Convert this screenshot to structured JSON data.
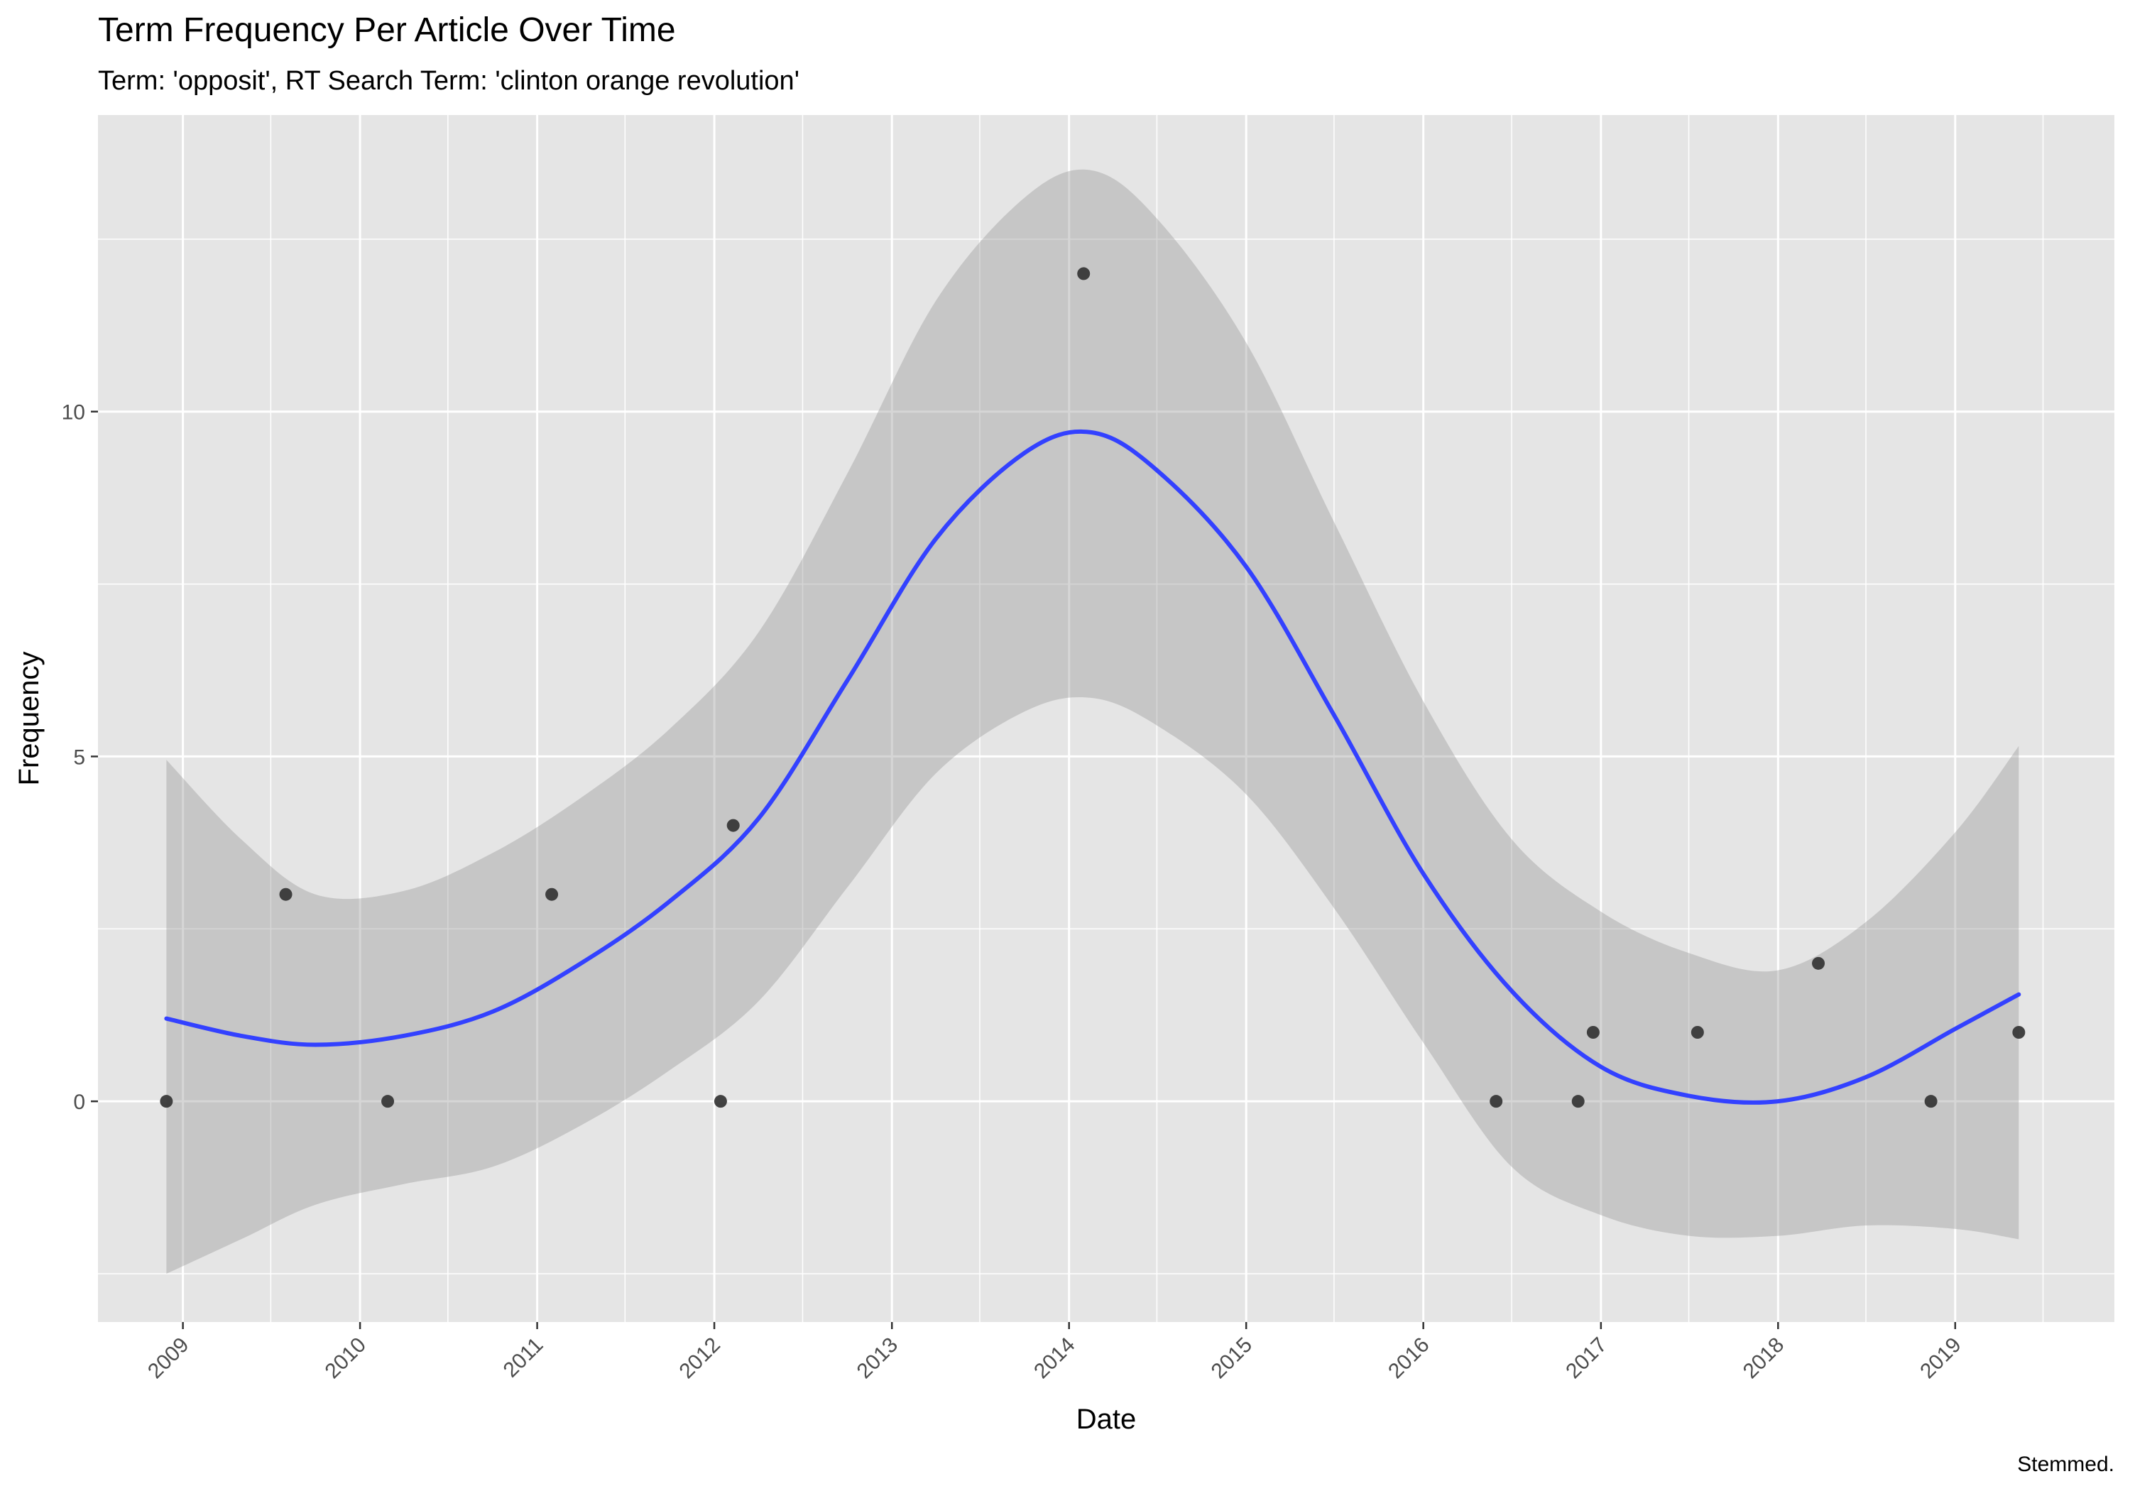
{
  "chart_data": {
    "type": "scatter",
    "title": "Term Frequency Per Article Over Time",
    "subtitle": "Term: 'opposit', RT Search Term: 'clinton orange revolution'",
    "xlabel": "Date",
    "ylabel": "Frequency",
    "caption": "Stemmed.",
    "x_ticks": [
      "2009",
      "2010",
      "2011",
      "2012",
      "2013",
      "2014",
      "2015",
      "2016",
      "2017",
      "2018",
      "2019"
    ],
    "y_ticks": [
      "0",
      "5",
      "10"
    ],
    "xlim": [
      "2008-07-10",
      "2019-11-25"
    ],
    "ylim": [
      -3.2,
      14.3
    ],
    "grid": true,
    "colors": {
      "panel": "#e5e5e5",
      "grid": "#ffffff",
      "points": "#333333",
      "smooth_line": "#3341ff",
      "ribbon": "#bfbfbf"
    },
    "points": [
      {
        "x": "2008-11-28",
        "y": 0
      },
      {
        "x": "2009-08-01",
        "y": 3
      },
      {
        "x": "2010-02-27",
        "y": 0
      },
      {
        "x": "2011-01-31",
        "y": 3
      },
      {
        "x": "2012-01-14",
        "y": 0
      },
      {
        "x": "2012-02-09",
        "y": 4
      },
      {
        "x": "2014-01-31",
        "y": 12
      },
      {
        "x": "2016-05-30",
        "y": 0
      },
      {
        "x": "2016-11-15",
        "y": 0
      },
      {
        "x": "2016-12-16",
        "y": 1
      },
      {
        "x": "2017-07-19",
        "y": 1
      },
      {
        "x": "2018-03-25",
        "y": 2
      },
      {
        "x": "2018-11-12",
        "y": 0
      },
      {
        "x": "2019-05-12",
        "y": 1
      }
    ],
    "smooth": {
      "method": "loess",
      "fit": [
        {
          "x": "2008-11-28",
          "y": 1.2,
          "ymin": -2.5,
          "ymax": 4.95
        },
        {
          "x": "2009-05-01",
          "y": 0.95,
          "ymin": -2.0,
          "ymax": 3.8
        },
        {
          "x": "2009-10-01",
          "y": 0.82,
          "ymin": -1.5,
          "ymax": 3.0
        },
        {
          "x": "2010-04-01",
          "y": 0.95,
          "ymin": -1.2,
          "ymax": 3.05
        },
        {
          "x": "2010-10-01",
          "y": 1.3,
          "ymin": -0.95,
          "ymax": 3.6
        },
        {
          "x": "2011-04-01",
          "y": 2.0,
          "ymin": -0.35,
          "ymax": 4.4
        },
        {
          "x": "2011-10-01",
          "y": 2.9,
          "ymin": 0.45,
          "ymax": 5.4
        },
        {
          "x": "2012-04-01",
          "y": 4.1,
          "ymin": 1.45,
          "ymax": 6.8
        },
        {
          "x": "2012-10-01",
          "y": 6.1,
          "ymin": 3.1,
          "ymax": 9.1
        },
        {
          "x": "2013-04-01",
          "y": 8.15,
          "ymin": 4.75,
          "ymax": 11.6
        },
        {
          "x": "2013-10-01",
          "y": 9.4,
          "ymin": 5.65,
          "ymax": 13.1
        },
        {
          "x": "2014-02-15",
          "y": 9.7,
          "ymin": 5.85,
          "ymax": 13.5
        },
        {
          "x": "2014-07-01",
          "y": 9.15,
          "ymin": 5.45,
          "ymax": 12.8
        },
        {
          "x": "2015-01-01",
          "y": 7.75,
          "ymin": 4.45,
          "ymax": 11.0
        },
        {
          "x": "2015-07-01",
          "y": 5.6,
          "ymin": 2.8,
          "ymax": 8.4
        },
        {
          "x": "2016-01-01",
          "y": 3.3,
          "ymin": 0.85,
          "ymax": 5.8
        },
        {
          "x": "2016-07-01",
          "y": 1.6,
          "ymin": -0.95,
          "ymax": 3.8
        },
        {
          "x": "2017-01-01",
          "y": 0.5,
          "ymin": -1.65,
          "ymax": 2.75
        },
        {
          "x": "2017-07-01",
          "y": 0.08,
          "ymin": -1.95,
          "ymax": 2.15
        },
        {
          "x": "2018-01-01",
          "y": 0.0,
          "ymin": -1.95,
          "ymax": 1.9
        },
        {
          "x": "2018-07-01",
          "y": 0.35,
          "ymin": -1.8,
          "ymax": 2.6
        },
        {
          "x": "2019-01-01",
          "y": 1.05,
          "ymin": -1.85,
          "ymax": 3.9
        },
        {
          "x": "2019-05-12",
          "y": 1.55,
          "ymin": -2.0,
          "ymax": 5.15
        }
      ]
    }
  }
}
